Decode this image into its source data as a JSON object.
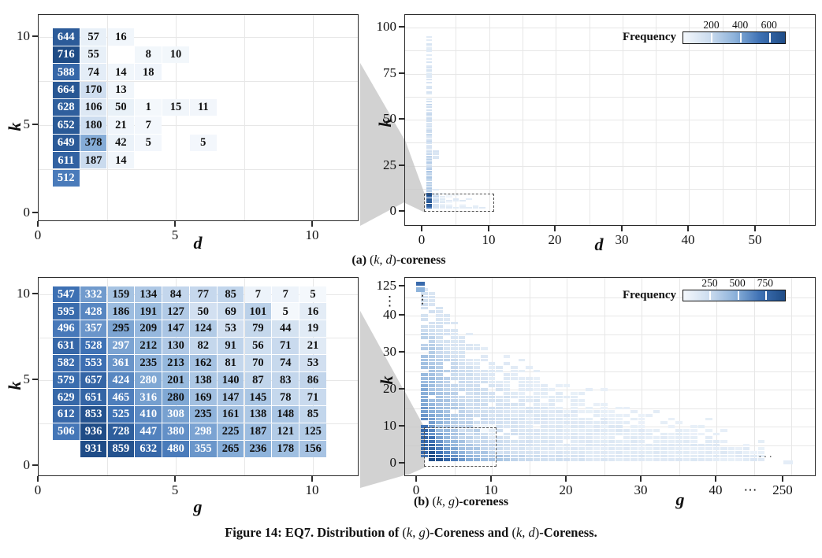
{
  "style": {
    "colormap": [
      "#f4f8fc",
      "#cdddef",
      "#8eb3db",
      "#3f72b5",
      "#1f4c86"
    ],
    "axis_color": "#2b2b2b",
    "grid_color": "#e7e7e7",
    "dashed_box_color": "#4f4f4f",
    "cone_color": "#c7c7c7",
    "text_color": "#111111"
  },
  "figure_caption": [
    {
      "t": "Figure 14: EQ7. Distribution of ",
      "s": "b"
    },
    {
      "t": "(",
      "s": "r"
    },
    {
      "t": "k",
      "s": "i"
    },
    {
      "t": ", ",
      "s": "r"
    },
    {
      "t": "g",
      "s": "i"
    },
    {
      "t": ")",
      "s": "r"
    },
    {
      "t": "-Coreness and ",
      "s": "b"
    },
    {
      "t": "(",
      "s": "r"
    },
    {
      "t": "k",
      "s": "i"
    },
    {
      "t": ", ",
      "s": "r"
    },
    {
      "t": "d",
      "s": "i"
    },
    {
      "t": ")",
      "s": "r"
    },
    {
      "t": "-Coreness.",
      "s": "b"
    }
  ],
  "chart_data": [
    {
      "id": "kd-zoom",
      "type": "heatmap",
      "xlabel": "d",
      "ylabel": "k",
      "x_ticks": [
        "0",
        "5",
        "10"
      ],
      "y_ticks": [
        "0",
        "5",
        "10"
      ],
      "xlim": [
        0,
        11.7
      ],
      "ylim": [
        0,
        11.3
      ],
      "k_rows": [
        10,
        9,
        8,
        7,
        6,
        5,
        4,
        3,
        2
      ],
      "col_start": [
        1,
        1,
        1,
        1,
        1,
        1,
        1,
        1,
        1
      ],
      "rows": [
        [
          644,
          57,
          16
        ],
        [
          716,
          55,
          null,
          8,
          10
        ],
        [
          588,
          74,
          14,
          18
        ],
        [
          664,
          170,
          13
        ],
        [
          628,
          106,
          50,
          1,
          15,
          11
        ],
        [
          652,
          180,
          21,
          7
        ],
        [
          649,
          378,
          42,
          5,
          null,
          5
        ],
        [
          611,
          187,
          14
        ],
        [
          512
        ]
      ],
      "color_domain": [
        1,
        716
      ],
      "color_scale": "linear",
      "white_text_prefix": [
        1,
        1,
        1,
        1,
        1,
        1,
        1,
        1,
        1
      ]
    },
    {
      "id": "kd-full",
      "type": "heatmap-overview",
      "xlabel": "d",
      "ylabel": "k",
      "x_ticks": [
        "0",
        "10",
        "20",
        "30",
        "40",
        "50"
      ],
      "y_ticks": [
        "0",
        "25",
        "50",
        "75",
        "100"
      ],
      "xlim": [
        0,
        59
      ],
      "ylim": [
        0,
        107
      ],
      "legend": {
        "label": "Frequency",
        "ticks": [
          "200",
          "400",
          "600"
        ],
        "domain": [
          1,
          716
        ]
      },
      "caption": [
        {
          "t": "(a) ",
          "s": "b"
        },
        {
          "t": "(",
          "s": "r"
        },
        {
          "t": "k",
          "s": "i"
        },
        {
          "t": ", ",
          "s": "r"
        },
        {
          "t": "d",
          "s": "i"
        },
        {
          "t": ")",
          "s": "r"
        },
        {
          "t": "-coreness",
          "s": "b"
        }
      ],
      "band": {
        "d": 1,
        "k_range": [
          1,
          95
        ]
      },
      "zoom_box": {
        "d": [
          0.3,
          10.8
        ],
        "k": [
          -0.8,
          10.2
        ]
      },
      "description": "Dense vertical band at d=1 from k=1 to k=95; sparse light cells for d=2-9 below k=10 and near k=30-33."
    },
    {
      "id": "kg-zoom",
      "type": "heatmap",
      "xlabel": "g",
      "ylabel": "k",
      "x_ticks": [
        "0",
        "5",
        "10"
      ],
      "y_ticks": [
        "0",
        "5",
        "10"
      ],
      "xlim": [
        0,
        11.7
      ],
      "ylim": [
        0,
        11.6
      ],
      "k_rows": [
        10,
        9,
        8,
        7,
        6,
        5,
        4,
        3,
        2,
        1
      ],
      "col_start": [
        1,
        1,
        1,
        1,
        1,
        1,
        1,
        1,
        1,
        2
      ],
      "rows": [
        [
          547,
          332,
          159,
          134,
          84,
          77,
          85,
          7,
          7,
          5
        ],
        [
          595,
          428,
          186,
          191,
          127,
          50,
          69,
          101,
          5,
          16
        ],
        [
          496,
          357,
          295,
          209,
          147,
          124,
          53,
          79,
          44,
          19
        ],
        [
          631,
          528,
          297,
          212,
          130,
          82,
          91,
          56,
          71,
          21
        ],
        [
          582,
          553,
          361,
          235,
          213,
          162,
          81,
          70,
          74,
          53
        ],
        [
          579,
          657,
          424,
          280,
          201,
          138,
          140,
          87,
          83,
          86
        ],
        [
          629,
          651,
          465,
          316,
          280,
          169,
          147,
          145,
          78,
          71
        ],
        [
          612,
          853,
          525,
          410,
          308,
          235,
          161,
          138,
          148,
          85
        ],
        [
          506,
          936,
          728,
          447,
          380,
          298,
          225,
          187,
          121,
          125
        ],
        [
          931,
          859,
          632,
          480,
          355,
          265,
          236,
          178,
          156
        ]
      ],
      "color_domain": [
        5,
        936
      ],
      "color_scale": "sqrt",
      "white_text_prefix": [
        2,
        2,
        2,
        3,
        3,
        4,
        4,
        5,
        6,
        5
      ]
    },
    {
      "id": "kg-full",
      "type": "heatmap-overview",
      "xlabel": "g",
      "ylabel": "k",
      "x_ticks": [
        "0",
        "10",
        "20",
        "30",
        "40",
        "⋯",
        "250"
      ],
      "y_ticks": [
        "0",
        "10",
        "20",
        "30",
        "40",
        "⋮",
        "125"
      ],
      "x_break_symbol": "⋯",
      "y_break_symbol": "⋮",
      "legend": {
        "label": "Frequency",
        "ticks": [
          "250",
          "500",
          "750"
        ],
        "domain": [
          5,
          936
        ]
      },
      "caption": [
        {
          "t": "(b) ",
          "s": "b"
        },
        {
          "t": "(",
          "s": "r"
        },
        {
          "t": "k",
          "s": "i"
        },
        {
          "t": ", ",
          "s": "r"
        },
        {
          "t": "g",
          "s": "i"
        },
        {
          "t": ")",
          "s": "r"
        },
        {
          "t": "-coreness",
          "s": "b"
        }
      ],
      "envelope": [
        [
          1,
          47
        ],
        [
          2,
          45
        ],
        [
          3,
          42
        ],
        [
          4,
          40
        ],
        [
          5,
          38
        ],
        [
          6,
          36
        ],
        [
          8,
          32
        ],
        [
          10,
          28
        ],
        [
          12,
          26
        ],
        [
          15,
          23
        ],
        [
          18,
          20
        ],
        [
          21,
          18
        ],
        [
          24,
          16
        ],
        [
          28,
          13
        ],
        [
          32,
          11
        ],
        [
          36,
          9
        ],
        [
          40,
          7
        ],
        [
          43,
          5
        ],
        [
          46,
          3
        ]
      ],
      "outliers": [
        {
          "g": 1,
          "k": 125
        },
        {
          "g": 1,
          "k": 123
        },
        {
          "g": 248,
          "k": 1
        }
      ],
      "zoom_box": {
        "g": [
          0.4,
          11.0
        ],
        "k": [
          -0.5,
          10.2
        ]
      },
      "description": "Triangular mass: dark dense columns at small g up to k~47, envelope decreasing to k~3 at g~46; isolated cells at k~125 (g=1) and near g~250 (k~1); axis breaks marked with dots."
    }
  ]
}
